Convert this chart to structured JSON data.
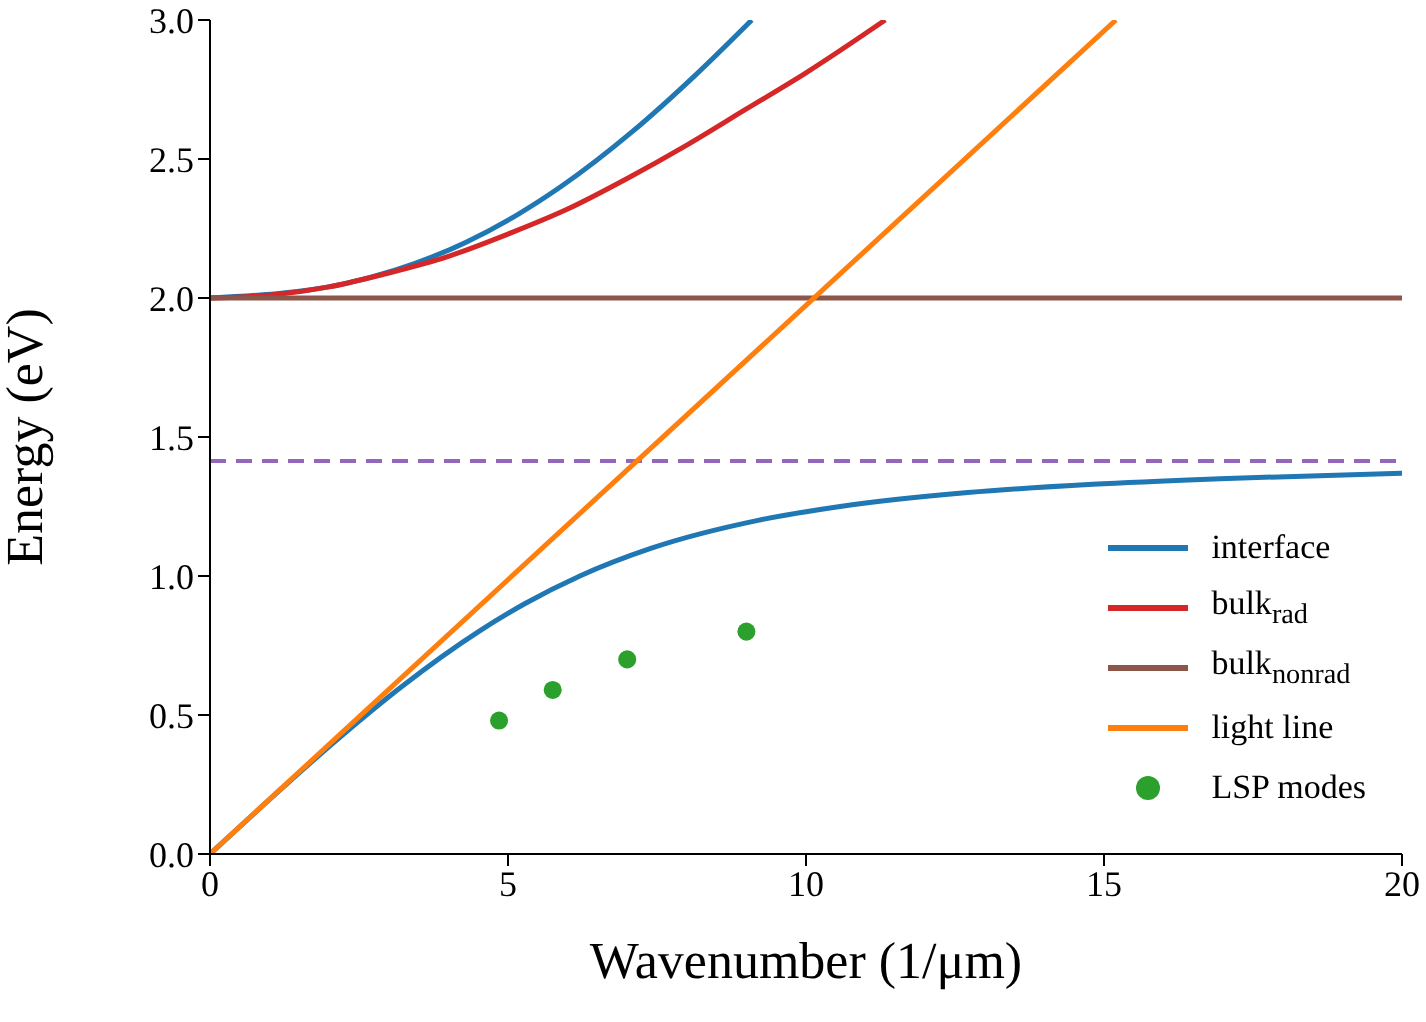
{
  "chart_data": {
    "type": "line",
    "xlabel": "Wavenumber (1/μm)",
    "ylabel": "Energy (eV)",
    "xlim": [
      0,
      20
    ],
    "ylim": [
      0,
      3
    ],
    "xticks": [
      0,
      5,
      10,
      15,
      20
    ],
    "yticks": [
      {
        "value": 0,
        "label": "0.0"
      },
      {
        "value": 0.5,
        "label": "0.5"
      },
      {
        "value": 1,
        "label": "1.0"
      },
      {
        "value": 1.5,
        "label": "1.5"
      },
      {
        "value": 2,
        "label": "2.0"
      },
      {
        "value": 2.5,
        "label": "2.5"
      },
      {
        "value": 3,
        "label": "3.0"
      }
    ],
    "grid": false,
    "legend": "bottom right",
    "marker": "none",
    "line_style": "solid",
    "ref_lines": [
      {
        "axis": "y",
        "value": 1.414,
        "label": null,
        "color": "#9467bd",
        "line_style": "dashed"
      }
    ],
    "series": [
      {
        "name": "interface",
        "color": "#1f77b4",
        "x": [
          0,
          1.019,
          2.071,
          3.203,
          4.506,
          5.28,
          6.206,
          7.407,
          9.194,
          10.572,
          12.716,
          14.81,
          16.943,
          20
        ],
        "values": [
          0,
          0.2,
          0.4,
          0.6,
          0.8,
          0.9,
          1.0,
          1.1,
          1.2,
          1.25,
          1.3,
          1.33,
          1.35,
          1.37
        ]
      },
      {
        "color": "#1f77b4",
        "x": [
          0,
          2.227,
          3.104,
          4.288,
          5.161,
          5.884,
          7.095,
          8.136,
          9.09
        ],
        "values": [
          2.0,
          2.05,
          2.1,
          2.2,
          2.3,
          2.4,
          2.6,
          2.8,
          3.0
        ]
      },
      {
        "name": "bulk$_{rad}$",
        "color": "#d62728",
        "x": [
          0,
          1,
          2,
          3,
          4,
          5,
          6,
          7,
          8,
          9,
          10,
          11.33
        ],
        "values": [
          2.0,
          2.01,
          2.04,
          2.09,
          2.15,
          2.23,
          2.32,
          2.43,
          2.55,
          2.68,
          2.81,
          3.0
        ]
      },
      {
        "name": "bulk$_{nonrad}$",
        "color": "#8c564b",
        "x": [
          0,
          20
        ],
        "values": [
          2.0,
          2.0
        ]
      },
      {
        "name": "light line",
        "color": "#ff7f0e",
        "x": [
          0,
          15.2
        ],
        "values": [
          0,
          3.0
        ]
      },
      {
        "name": "LSP modes",
        "type": "scatter",
        "color": "#2ca02c",
        "marker": "circle",
        "x": [
          4.85,
          5.75,
          7.0,
          9.0
        ],
        "values": [
          0.48,
          0.59,
          0.7,
          0.8
        ]
      }
    ]
  }
}
